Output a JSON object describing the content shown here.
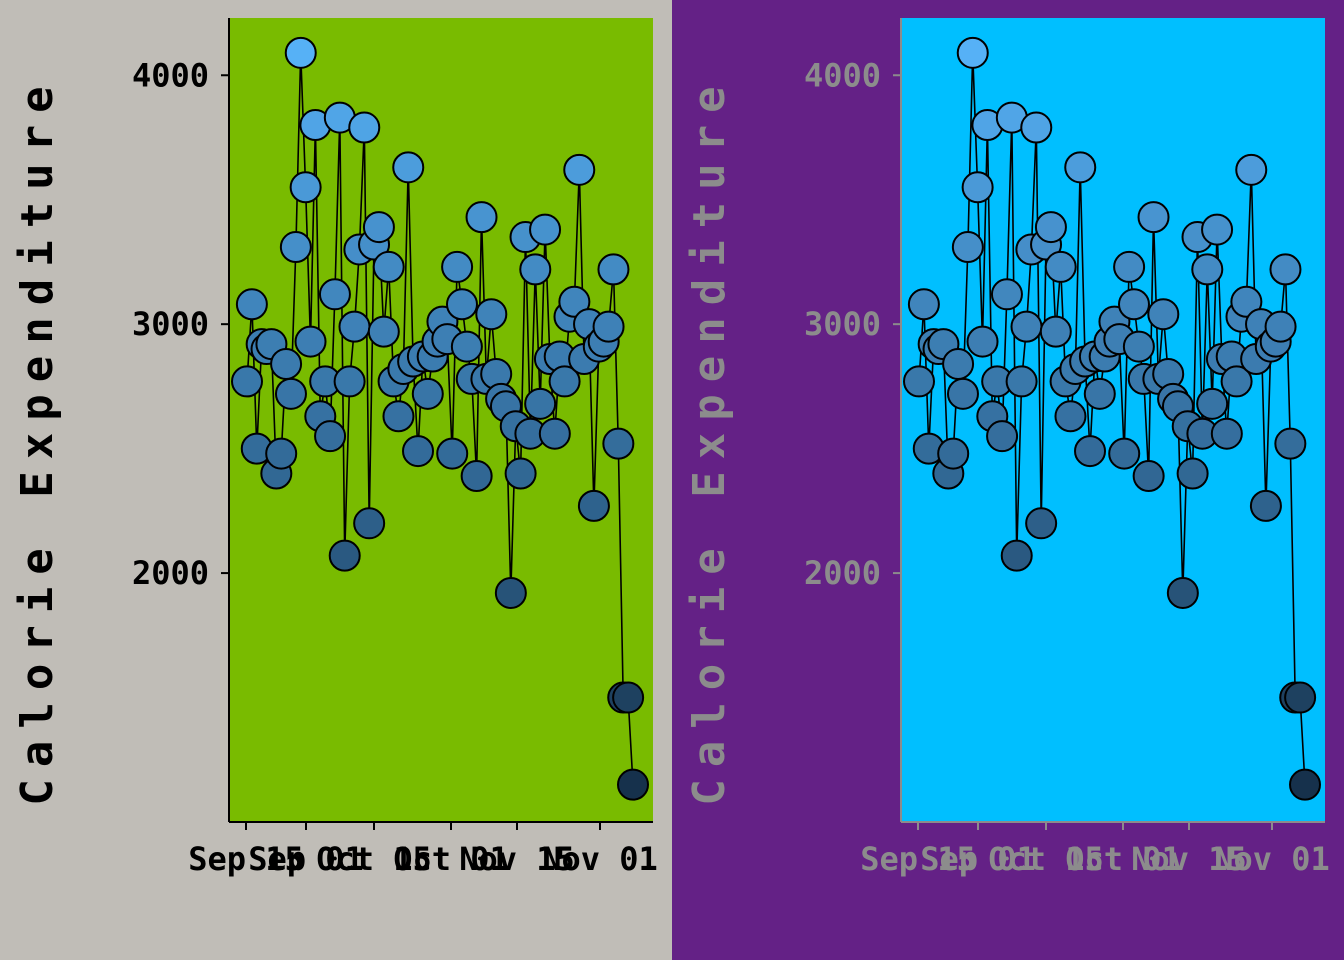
{
  "chart_data": [
    {
      "type": "line",
      "title": "",
      "xlabel": "",
      "ylabel": "Calorie Expenditure",
      "ylim": [
        1000,
        4230
      ],
      "y_ticks": [
        2000,
        3000,
        4000
      ],
      "x_tick_labels": [
        "Sep 15",
        "Sep 01",
        "Oct 15",
        "Oct 01",
        "Nov 15",
        "Nov 01"
      ],
      "series": [
        {
          "values": [
            2770,
            3080,
            2500,
            2920,
            2900,
            2920,
            2400,
            2480,
            2840,
            2720,
            3310,
            4090,
            3550,
            2930,
            3800,
            2630,
            2770,
            2550,
            3120,
            3830,
            2070,
            2770,
            2990,
            3300,
            3790,
            2200,
            3320,
            3390,
            2970,
            3230,
            2770,
            2630,
            2820,
            3630,
            2850,
            2490,
            2870,
            2720,
            2870,
            2930,
            3010,
            2940,
            2480,
            3230,
            3080,
            2910,
            2780,
            2390,
            3430,
            2780,
            3040,
            2800,
            2700,
            2670,
            1920,
            2590,
            2400,
            3350,
            2560,
            3220,
            2680,
            3380,
            2860,
            2560,
            2870,
            2770,
            3030,
            3090,
            3620,
            2860,
            3000,
            2270,
            2910,
            2930,
            2990,
            3220,
            2520,
            1500,
            1500,
            1150
          ]
        }
      ]
    }
  ],
  "panels": [
    {
      "background": "#c0bdb7",
      "plot_background": "#79bb00",
      "text_color": "#000000"
    },
    {
      "background": "#642186",
      "plot_background": "#00bfff",
      "text_color": "#8c8c8c"
    }
  ],
  "marker_color_light": "#56b1f7",
  "marker_color_dark": "#132b43"
}
